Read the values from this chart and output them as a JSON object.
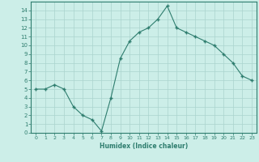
{
  "x": [
    0,
    1,
    2,
    3,
    4,
    5,
    6,
    7,
    8,
    9,
    10,
    11,
    12,
    13,
    14,
    15,
    16,
    17,
    18,
    19,
    20,
    21,
    22,
    23
  ],
  "y": [
    5.0,
    5.0,
    5.5,
    5.0,
    3.0,
    2.0,
    1.5,
    0.2,
    4.0,
    8.5,
    10.5,
    11.5,
    12.0,
    13.0,
    14.5,
    12.0,
    11.5,
    11.0,
    10.5,
    10.0,
    9.0,
    8.0,
    6.5,
    6.0
  ],
  "xlabel": "Humidex (Indice chaleur)",
  "line_color": "#2e7d6e",
  "marker_color": "#2e7d6e",
  "bg_color": "#cceee8",
  "grid_color": "#aad4ce",
  "axis_color": "#2e7d6e",
  "tick_label_color": "#2e7d6e",
  "xlim": [
    -0.5,
    23.5
  ],
  "ylim": [
    0,
    15
  ],
  "yticks": [
    0,
    1,
    2,
    3,
    4,
    5,
    6,
    7,
    8,
    9,
    10,
    11,
    12,
    13,
    14
  ],
  "xticks": [
    0,
    1,
    2,
    3,
    4,
    5,
    6,
    7,
    8,
    9,
    10,
    11,
    12,
    13,
    14,
    15,
    16,
    17,
    18,
    19,
    20,
    21,
    22,
    23
  ]
}
